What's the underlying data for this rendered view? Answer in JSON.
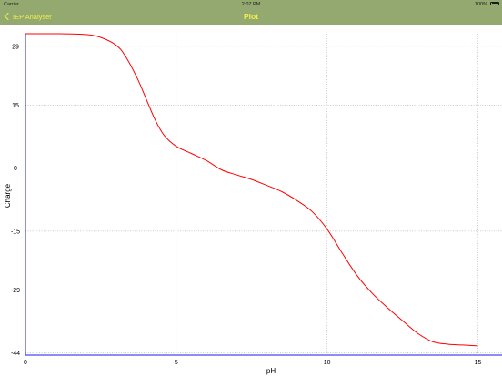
{
  "status_bar": {
    "carrier": "Carrier",
    "time": "2:07 PM",
    "battery": "100%"
  },
  "nav": {
    "back_label": "IEP Analyser",
    "title": "Plot"
  },
  "chart_data": {
    "type": "line",
    "title": "",
    "xlabel": "pH",
    "ylabel": "Charge",
    "xlim": [
      0,
      15.8
    ],
    "ylim": [
      -44.5,
      32
    ],
    "xticks": [
      0,
      5,
      10,
      15
    ],
    "yticks": [
      29,
      15,
      0,
      -15,
      -29,
      -44
    ],
    "grid": true,
    "series": [
      {
        "color": "#ff0000",
        "x": [
          0,
          1,
          2,
          2.5,
          3,
          3.3,
          3.7,
          4,
          4.3,
          4.6,
          5,
          5.5,
          6,
          6.5,
          7,
          7.5,
          8,
          8.5,
          9,
          9.5,
          10,
          10.5,
          11,
          11.5,
          12,
          12.5,
          13,
          13.5,
          14,
          14.5,
          15
        ],
        "y": [
          32,
          32,
          31.8,
          31.1,
          29.3,
          26.8,
          21.5,
          16.5,
          11.5,
          7.8,
          5.2,
          3.5,
          1.8,
          -0.4,
          -1.6,
          -2.7,
          -4.1,
          -5.6,
          -7.7,
          -10.3,
          -14.5,
          -20.2,
          -25.6,
          -29.8,
          -33.2,
          -36.3,
          -39.3,
          -41.3,
          -41.9,
          -42.1,
          -42.3
        ]
      }
    ]
  }
}
